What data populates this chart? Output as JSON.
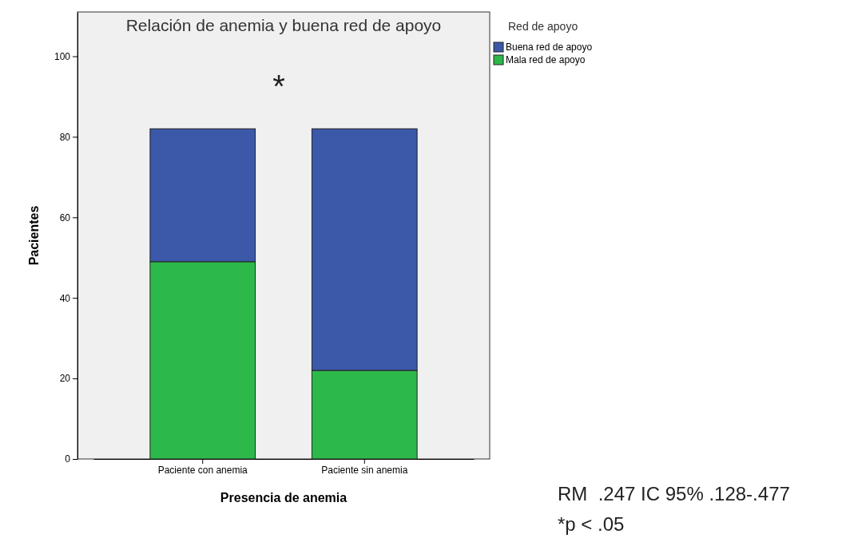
{
  "chart_data": {
    "type": "bar",
    "title": "Relación de anemia y buena red de apoyo",
    "xlabel": "Presencia de anemia",
    "ylabel": "Pacientes",
    "legend_title": "Red de apoyo",
    "categories": [
      "Paciente con anemia",
      "Paciente sin anemia"
    ],
    "stacked": true,
    "series": [
      {
        "name": "Mala red de apoyo",
        "color": "#2db84a",
        "values": [
          49,
          22
        ]
      },
      {
        "name": "Buena red de apoyo",
        "color": "#3c58a8",
        "values": [
          33,
          60
        ]
      }
    ],
    "ylim": [
      0,
      111
    ],
    "yticks": [
      0,
      20,
      40,
      60,
      80,
      100
    ],
    "grid": false,
    "legend": "top right",
    "annotations": [
      "*",
      "RM  .247 IC 95% .128-.477",
      "*p < .05"
    ]
  }
}
